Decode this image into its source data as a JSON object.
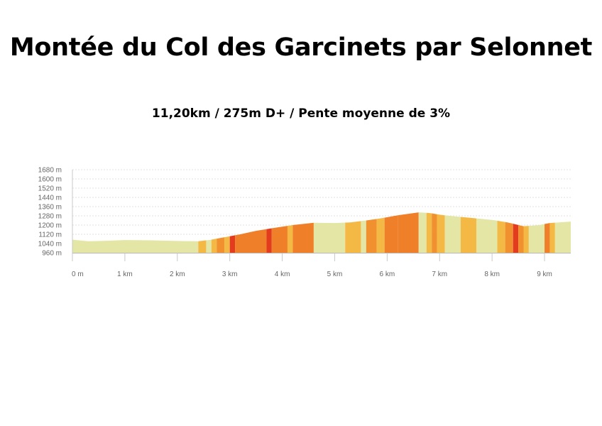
{
  "title": "Montée du Col des Garcinets par Selonnet",
  "subtitle": "11,20km / 275m D+ / Pente moyenne de 3%",
  "chart_data": {
    "type": "area",
    "title": "Montée du Col des Garcinets par Selonnet",
    "subtitle": "11,20km / 275m D+ / Pente moyenne de 3%",
    "xlabel": "",
    "ylabel": "",
    "xlim": [
      0,
      9.5
    ],
    "ylim": [
      960,
      1680
    ],
    "x_ticks": [
      0,
      1,
      2,
      3,
      4,
      5,
      6,
      7,
      8,
      9
    ],
    "x_tick_labels": [
      "0 m",
      "1 km",
      "2 km",
      "3 km",
      "4 km",
      "5 km",
      "6 km",
      "7 km",
      "8 km",
      "9 km"
    ],
    "y_ticks": [
      960,
      1040,
      1120,
      1200,
      1280,
      1360,
      1440,
      1520,
      1600,
      1680
    ],
    "y_tick_labels": [
      "960 m",
      "1040 m",
      "1120 m",
      "1200 m",
      "1280 m",
      "1360 m",
      "1440 m",
      "1520 m",
      "1600 m",
      "1680 m"
    ],
    "grid": true,
    "profile": {
      "x": [
        0,
        0.3,
        0.6,
        1.0,
        1.5,
        2.0,
        2.4,
        2.6,
        2.9,
        3.2,
        3.5,
        3.8,
        4.2,
        4.6,
        5.0,
        5.3,
        5.6,
        5.9,
        6.2,
        6.6,
        6.8,
        7.0,
        7.3,
        7.6,
        8.0,
        8.3,
        8.6,
        8.9,
        9.1,
        9.5
      ],
      "y": [
        1073,
        1060,
        1063,
        1070,
        1068,
        1062,
        1060,
        1070,
        1095,
        1120,
        1150,
        1172,
        1200,
        1220,
        1218,
        1223,
        1240,
        1260,
        1285,
        1310,
        1305,
        1290,
        1275,
        1262,
        1245,
        1222,
        1190,
        1200,
        1218,
        1230
      ]
    },
    "slope_colors": {
      "flat": "#e3e6a4",
      "light": "#f4b844",
      "medium": "#f0902f",
      "steep": "#ef7f28",
      "very_steep": "#e23b1e"
    },
    "segments": [
      {
        "from": 0.0,
        "to": 2.4,
        "class": "flat"
      },
      {
        "from": 2.4,
        "to": 2.55,
        "class": "light"
      },
      {
        "from": 2.55,
        "to": 2.65,
        "class": "flat"
      },
      {
        "from": 2.65,
        "to": 2.75,
        "class": "light"
      },
      {
        "from": 2.75,
        "to": 2.9,
        "class": "medium"
      },
      {
        "from": 2.9,
        "to": 3.0,
        "class": "light"
      },
      {
        "from": 3.0,
        "to": 3.1,
        "class": "very_steep"
      },
      {
        "from": 3.1,
        "to": 3.7,
        "class": "steep"
      },
      {
        "from": 3.7,
        "to": 3.8,
        "class": "very_steep"
      },
      {
        "from": 3.8,
        "to": 4.1,
        "class": "steep"
      },
      {
        "from": 4.1,
        "to": 4.2,
        "class": "light"
      },
      {
        "from": 4.2,
        "to": 4.6,
        "class": "steep"
      },
      {
        "from": 4.6,
        "to": 5.2,
        "class": "flat"
      },
      {
        "from": 5.2,
        "to": 5.5,
        "class": "light"
      },
      {
        "from": 5.5,
        "to": 5.6,
        "class": "flat"
      },
      {
        "from": 5.6,
        "to": 5.8,
        "class": "medium"
      },
      {
        "from": 5.8,
        "to": 5.95,
        "class": "light"
      },
      {
        "from": 5.95,
        "to": 6.2,
        "class": "steep"
      },
      {
        "from": 6.2,
        "to": 6.6,
        "class": "steep"
      },
      {
        "from": 6.6,
        "to": 6.75,
        "class": "flat"
      },
      {
        "from": 6.75,
        "to": 6.85,
        "class": "light"
      },
      {
        "from": 6.85,
        "to": 6.95,
        "class": "medium"
      },
      {
        "from": 6.95,
        "to": 7.1,
        "class": "light"
      },
      {
        "from": 7.1,
        "to": 7.4,
        "class": "flat"
      },
      {
        "from": 7.4,
        "to": 7.7,
        "class": "light"
      },
      {
        "from": 7.7,
        "to": 8.1,
        "class": "flat"
      },
      {
        "from": 8.1,
        "to": 8.25,
        "class": "light"
      },
      {
        "from": 8.25,
        "to": 8.4,
        "class": "medium"
      },
      {
        "from": 8.4,
        "to": 8.5,
        "class": "very_steep"
      },
      {
        "from": 8.5,
        "to": 8.6,
        "class": "medium"
      },
      {
        "from": 8.6,
        "to": 8.7,
        "class": "light"
      },
      {
        "from": 8.7,
        "to": 9.0,
        "class": "flat"
      },
      {
        "from": 9.0,
        "to": 9.1,
        "class": "steep"
      },
      {
        "from": 9.1,
        "to": 9.2,
        "class": "light"
      },
      {
        "from": 9.2,
        "to": 9.5,
        "class": "flat"
      }
    ]
  }
}
